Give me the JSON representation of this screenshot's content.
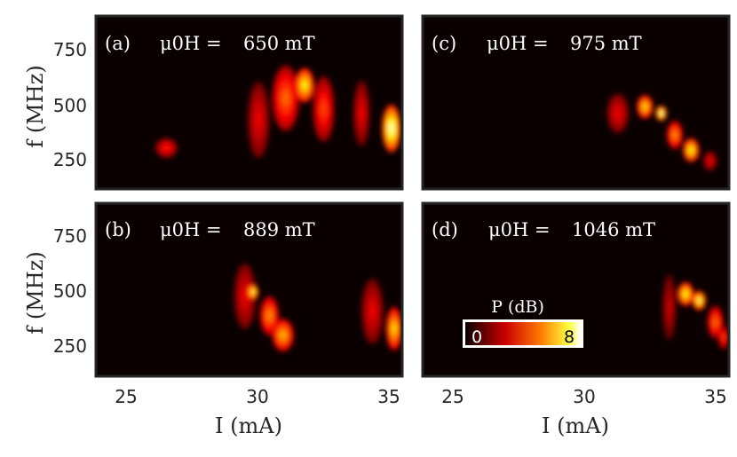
{
  "chart_data": [
    {
      "type": "heatmap",
      "panel_label": "(a)",
      "field_prefix": "μ0H =",
      "field_value": "650 mT",
      "xlabel": "I (mA)",
      "ylabel": "f (MHz)",
      "xlim": [
        24,
        35.3
      ],
      "ylim": [
        100,
        900
      ],
      "xticks": [
        "25",
        "30",
        "35"
      ],
      "yticks": [
        "250",
        "500",
        "750"
      ],
      "blobs": [
        {
          "I": 26.6,
          "f": 290,
          "width_mA": 0.8,
          "height_MHz": 90,
          "dB": 3.5
        },
        {
          "I": 30.0,
          "f": 420,
          "width_mA": 0.8,
          "height_MHz": 350,
          "dB": 3.0
        },
        {
          "I": 31.0,
          "f": 520,
          "width_mA": 1.0,
          "height_MHz": 300,
          "dB": 4.5
        },
        {
          "I": 31.7,
          "f": 580,
          "width_mA": 0.7,
          "height_MHz": 160,
          "dB": 6.5
        },
        {
          "I": 32.4,
          "f": 470,
          "width_mA": 0.8,
          "height_MHz": 300,
          "dB": 4.0
        },
        {
          "I": 33.8,
          "f": 450,
          "width_mA": 0.6,
          "height_MHz": 300,
          "dB": 3.0
        },
        {
          "I": 34.9,
          "f": 380,
          "width_mA": 0.7,
          "height_MHz": 220,
          "dB": 7.5
        }
      ]
    },
    {
      "type": "heatmap",
      "panel_label": "(b)",
      "field_prefix": "μ0H =",
      "field_value": "889 mT",
      "xlabel": "I (mA)",
      "ylabel": "f (MHz)",
      "xlim": [
        24,
        35.3
      ],
      "ylim": [
        100,
        900
      ],
      "xticks": [
        "25",
        "30",
        "35"
      ],
      "yticks": [
        "250",
        "500",
        "750"
      ],
      "blobs": [
        {
          "I": 29.5,
          "f": 470,
          "width_mA": 0.8,
          "height_MHz": 300,
          "dB": 3.0
        },
        {
          "I": 29.8,
          "f": 490,
          "width_mA": 0.4,
          "height_MHz": 70,
          "dB": 7.0
        },
        {
          "I": 30.4,
          "f": 380,
          "width_mA": 0.7,
          "height_MHz": 180,
          "dB": 5.0
        },
        {
          "I": 30.9,
          "f": 290,
          "width_mA": 0.8,
          "height_MHz": 150,
          "dB": 5.5
        },
        {
          "I": 34.2,
          "f": 400,
          "width_mA": 0.8,
          "height_MHz": 300,
          "dB": 3.0
        },
        {
          "I": 35.0,
          "f": 320,
          "width_mA": 0.6,
          "height_MHz": 200,
          "dB": 6.0
        }
      ]
    },
    {
      "type": "heatmap",
      "panel_label": "(c)",
      "field_prefix": "μ0H =",
      "field_value": "975 mT",
      "xlabel": "I (mA)",
      "ylabel": "f (MHz)",
      "xlim": [
        24,
        35.3
      ],
      "ylim": [
        100,
        900
      ],
      "xticks": [
        "25",
        "30",
        "35"
      ],
      "yticks": [
        "250",
        "500",
        "750"
      ],
      "blobs": [
        {
          "I": 31.2,
          "f": 450,
          "width_mA": 0.8,
          "height_MHz": 180,
          "dB": 3.0
        },
        {
          "I": 32.2,
          "f": 480,
          "width_mA": 0.6,
          "height_MHz": 110,
          "dB": 6.0
        },
        {
          "I": 32.8,
          "f": 450,
          "width_mA": 0.4,
          "height_MHz": 70,
          "dB": 7.5
        },
        {
          "I": 33.3,
          "f": 350,
          "width_mA": 0.6,
          "height_MHz": 130,
          "dB": 5.0
        },
        {
          "I": 33.9,
          "f": 280,
          "width_mA": 0.6,
          "height_MHz": 110,
          "dB": 6.5
        },
        {
          "I": 34.6,
          "f": 230,
          "width_mA": 0.5,
          "height_MHz": 90,
          "dB": 3.0
        }
      ]
    },
    {
      "type": "heatmap",
      "panel_label": "(d)",
      "field_prefix": "μ0H =",
      "field_value": "1046 mT",
      "xlabel": "I (mA)",
      "ylabel": "f (MHz)",
      "xlim": [
        24,
        35.3
      ],
      "ylim": [
        100,
        900
      ],
      "xticks": [
        "25",
        "30",
        "35"
      ],
      "yticks": [
        "250",
        "500",
        "750"
      ],
      "blobs": [
        {
          "I": 33.1,
          "f": 420,
          "width_mA": 0.5,
          "height_MHz": 300,
          "dB": 2.5
        },
        {
          "I": 33.7,
          "f": 480,
          "width_mA": 0.6,
          "height_MHz": 110,
          "dB": 6.5
        },
        {
          "I": 34.2,
          "f": 450,
          "width_mA": 0.5,
          "height_MHz": 90,
          "dB": 7.0
        },
        {
          "I": 34.8,
          "f": 350,
          "width_mA": 0.6,
          "height_MHz": 150,
          "dB": 4.5
        },
        {
          "I": 35.1,
          "f": 280,
          "width_mA": 0.4,
          "height_MHz": 110,
          "dB": 4.0
        }
      ]
    }
  ],
  "colorbar": {
    "label": "P (dB)",
    "min_label": "0",
    "max_label": "8",
    "min": 0,
    "max": 8,
    "colormap": "hot"
  },
  "colors": {
    "background": "#0b0000",
    "frame": "#262626",
    "text_on_plot": "#ffffff"
  }
}
